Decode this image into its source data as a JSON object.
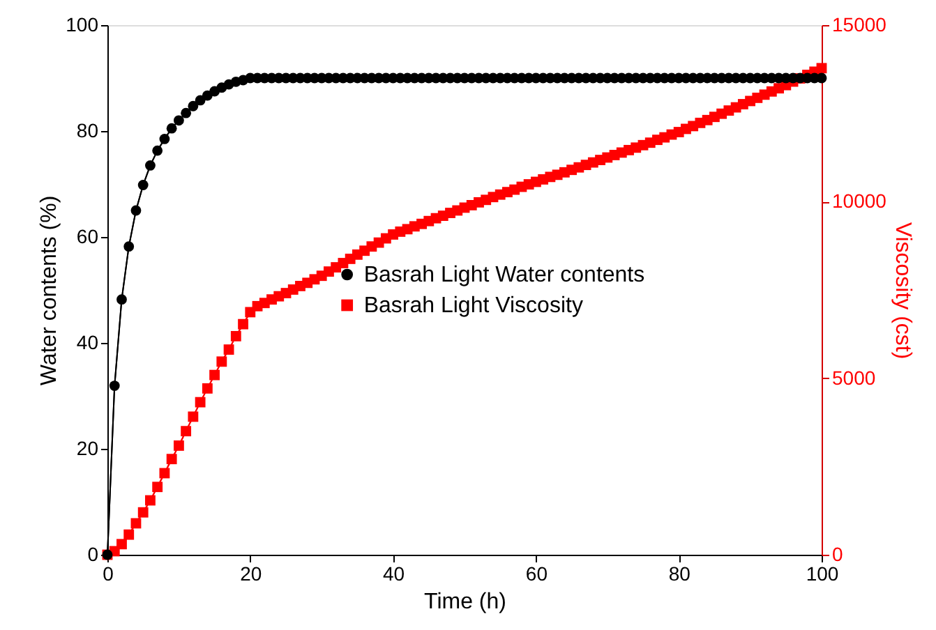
{
  "chart_data": {
    "type": "line",
    "xlabel": "Time (h)",
    "ylabel": "Water contents (%)",
    "y2label": "Viscosity (cst)",
    "x": [
      0,
      1,
      2,
      3,
      4,
      5,
      6,
      7,
      8,
      9,
      10,
      11,
      12,
      13,
      14,
      15,
      16,
      17,
      18,
      19,
      20,
      21,
      22,
      23,
      24,
      25,
      26,
      27,
      28,
      29,
      30,
      31,
      32,
      33,
      34,
      35,
      36,
      37,
      38,
      39,
      40,
      41,
      42,
      43,
      44,
      45,
      46,
      47,
      48,
      49,
      50,
      51,
      52,
      53,
      54,
      55,
      56,
      57,
      58,
      59,
      60,
      61,
      62,
      63,
      64,
      65,
      66,
      67,
      68,
      69,
      70,
      71,
      72,
      73,
      74,
      75,
      76,
      77,
      78,
      79,
      80,
      81,
      82,
      83,
      84,
      85,
      86,
      87,
      88,
      89,
      90,
      91,
      92,
      93,
      94,
      95,
      96,
      97,
      98,
      99,
      100
    ],
    "series": [
      {
        "name": "Basrah Light Water contents",
        "color": "#000000",
        "marker": "circle",
        "values": [
          0,
          31.9,
          48.2,
          58.2,
          65,
          69.8,
          73.5,
          76.3,
          78.5,
          80.5,
          82,
          83.4,
          84.7,
          85.8,
          86.7,
          87.5,
          88.2,
          88.8,
          89.3,
          89.6,
          90,
          90,
          90,
          90,
          90,
          90,
          90,
          90,
          90,
          90,
          90,
          90,
          90,
          90,
          90,
          90,
          90,
          90,
          90,
          90,
          90,
          90,
          90,
          90,
          90,
          90,
          90,
          90,
          90,
          90,
          90,
          90,
          90,
          90,
          90,
          90,
          90,
          90,
          90,
          90,
          90,
          90,
          90,
          90,
          90,
          90,
          90,
          90,
          90,
          90,
          90,
          90,
          90,
          90,
          90,
          90,
          90,
          90,
          90,
          90,
          90,
          90,
          90,
          90,
          90,
          90,
          90,
          90,
          90,
          90,
          90,
          90,
          90,
          90,
          90,
          90,
          90,
          90,
          90,
          90,
          90
        ]
      },
      {
        "name": "Basrah Light Viscosity",
        "color": "#ff0000",
        "marker": "square",
        "axis": "y2",
        "values": [
          0,
          100,
          300,
          570,
          890,
          1200,
          1540,
          1920,
          2310,
          2710,
          3090,
          3500,
          3910,
          4320,
          4710,
          5090,
          5470,
          5810,
          6190,
          6530,
          6870,
          7040,
          7130,
          7230,
          7320,
          7410,
          7510,
          7610,
          7700,
          7800,
          7900,
          8020,
          8140,
          8260,
          8380,
          8500,
          8610,
          8730,
          8840,
          8960,
          9070,
          9150,
          9220,
          9300,
          9370,
          9450,
          9530,
          9600,
          9680,
          9750,
          9830,
          9900,
          9980,
          10050,
          10130,
          10200,
          10270,
          10340,
          10420,
          10490,
          10560,
          10630,
          10700,
          10760,
          10830,
          10900,
          10970,
          11040,
          11110,
          11180,
          11250,
          11320,
          11390,
          11460,
          11530,
          11600,
          11670,
          11750,
          11820,
          11900,
          11970,
          12060,
          12140,
          12230,
          12310,
          12400,
          12490,
          12580,
          12670,
          12760,
          12850,
          12940,
          13030,
          13120,
          13210,
          13300,
          13400,
          13490,
          13590,
          13680,
          13780
        ]
      }
    ],
    "xlim": [
      0,
      100
    ],
    "xticks": [
      0,
      20,
      40,
      60,
      80,
      100
    ],
    "ylim": [
      0,
      100
    ],
    "yticks": [
      0,
      20,
      40,
      60,
      80,
      100
    ],
    "y2lim": [
      0,
      15000
    ],
    "y2ticks": [
      0,
      5000,
      10000,
      15000
    ],
    "legend": "right",
    "grid": false,
    "line_style": "solid"
  }
}
